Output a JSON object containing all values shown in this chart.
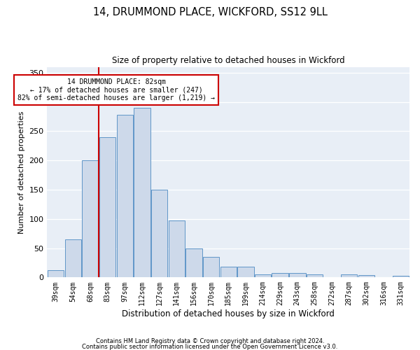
{
  "title1": "14, DRUMMOND PLACE, WICKFORD, SS12 9LL",
  "title2": "Size of property relative to detached houses in Wickford",
  "xlabel": "Distribution of detached houses by size in Wickford",
  "ylabel": "Number of detached properties",
  "footer1": "Contains HM Land Registry data © Crown copyright and database right 2024.",
  "footer2": "Contains public sector information licensed under the Open Government Licence v3.0.",
  "annotation_line1": "14 DRUMMOND PLACE: 82sqm",
  "annotation_line2": "← 17% of detached houses are smaller (247)",
  "annotation_line3": "82% of semi-detached houses are larger (1,219) →",
  "bar_color": "#cdd9ea",
  "bar_edge_color": "#6096c8",
  "marker_color": "#cc0000",
  "background_color": "#e8eef6",
  "grid_color": "#ffffff",
  "categories": [
    "39sqm",
    "54sqm",
    "68sqm",
    "83sqm",
    "97sqm",
    "112sqm",
    "127sqm",
    "141sqm",
    "156sqm",
    "170sqm",
    "185sqm",
    "199sqm",
    "214sqm",
    "229sqm",
    "243sqm",
    "258sqm",
    "272sqm",
    "287sqm",
    "302sqm",
    "316sqm",
    "331sqm"
  ],
  "values": [
    12,
    65,
    200,
    240,
    278,
    290,
    150,
    97,
    49,
    35,
    18,
    18,
    5,
    8,
    7,
    5,
    0,
    5,
    4,
    0,
    3
  ],
  "marker_bar_index": 3,
  "ylim": [
    0,
    360
  ],
  "yticks": [
    0,
    50,
    100,
    150,
    200,
    250,
    300,
    350
  ]
}
